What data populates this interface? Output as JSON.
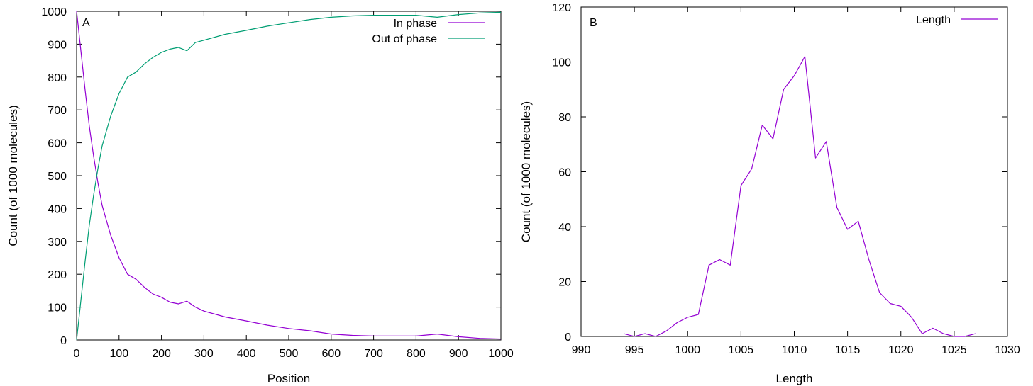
{
  "chart_data": [
    {
      "panel_label": "A",
      "type": "line",
      "title": "",
      "xlabel": "Position",
      "ylabel": "Count (of 1000 molecules)",
      "xlim": [
        0,
        1000
      ],
      "ylim": [
        0,
        1000
      ],
      "xticks": [
        0,
        100,
        200,
        300,
        400,
        500,
        600,
        700,
        800,
        900,
        1000
      ],
      "yticks": [
        0,
        100,
        200,
        300,
        400,
        500,
        600,
        700,
        800,
        900,
        1000
      ],
      "grid": false,
      "legend_position": "top-right",
      "series": [
        {
          "name": "In phase",
          "color": "#9400d3",
          "x": [
            0,
            5,
            10,
            20,
            30,
            40,
            50,
            60,
            80,
            100,
            120,
            140,
            160,
            180,
            200,
            220,
            240,
            260,
            280,
            300,
            350,
            400,
            450,
            500,
            550,
            600,
            650,
            700,
            750,
            800,
            850,
            900,
            950,
            1000
          ],
          "y": [
            1000,
            940,
            880,
            760,
            650,
            560,
            480,
            410,
            320,
            250,
            200,
            185,
            160,
            140,
            130,
            115,
            110,
            118,
            100,
            88,
            70,
            58,
            45,
            35,
            28,
            18,
            14,
            12,
            12,
            12,
            18,
            10,
            5,
            3
          ]
        },
        {
          "name": "Out of phase",
          "color": "#009e73",
          "x": [
            0,
            5,
            10,
            20,
            30,
            40,
            50,
            60,
            80,
            100,
            120,
            140,
            160,
            180,
            200,
            220,
            240,
            260,
            280,
            300,
            350,
            400,
            450,
            500,
            550,
            600,
            650,
            700,
            750,
            800,
            850,
            900,
            950,
            1000
          ],
          "y": [
            0,
            60,
            120,
            240,
            350,
            440,
            520,
            590,
            680,
            750,
            800,
            815,
            840,
            860,
            875,
            885,
            890,
            880,
            905,
            912,
            930,
            942,
            955,
            965,
            975,
            982,
            986,
            988,
            988,
            988,
            982,
            990,
            995,
            997
          ]
        }
      ]
    },
    {
      "panel_label": "B",
      "type": "line",
      "title": "",
      "xlabel": "Length",
      "ylabel": "Count (of 1000 molecules)",
      "xlim": [
        990,
        1030
      ],
      "ylim": [
        0,
        120
      ],
      "xticks": [
        990,
        995,
        1000,
        1005,
        1010,
        1015,
        1020,
        1025,
        1030
      ],
      "yticks": [
        0,
        20,
        40,
        60,
        80,
        100,
        120
      ],
      "grid": false,
      "legend_position": "top-right",
      "series": [
        {
          "name": "Length",
          "color": "#9400d3",
          "x": [
            994,
            995,
            996,
            997,
            998,
            999,
            1000,
            1001,
            1002,
            1003,
            1004,
            1005,
            1006,
            1007,
            1008,
            1009,
            1010,
            1011,
            1012,
            1013,
            1014,
            1015,
            1016,
            1017,
            1018,
            1019,
            1020,
            1021,
            1022,
            1023,
            1024,
            1025,
            1026,
            1027
          ],
          "y": [
            1,
            0,
            1,
            0,
            2,
            5,
            7,
            8,
            26,
            28,
            26,
            55,
            61,
            77,
            72,
            90,
            95,
            102,
            65,
            71,
            47,
            39,
            42,
            28,
            16,
            12,
            11,
            7,
            1,
            3,
            1,
            0,
            0,
            1
          ]
        }
      ]
    }
  ]
}
